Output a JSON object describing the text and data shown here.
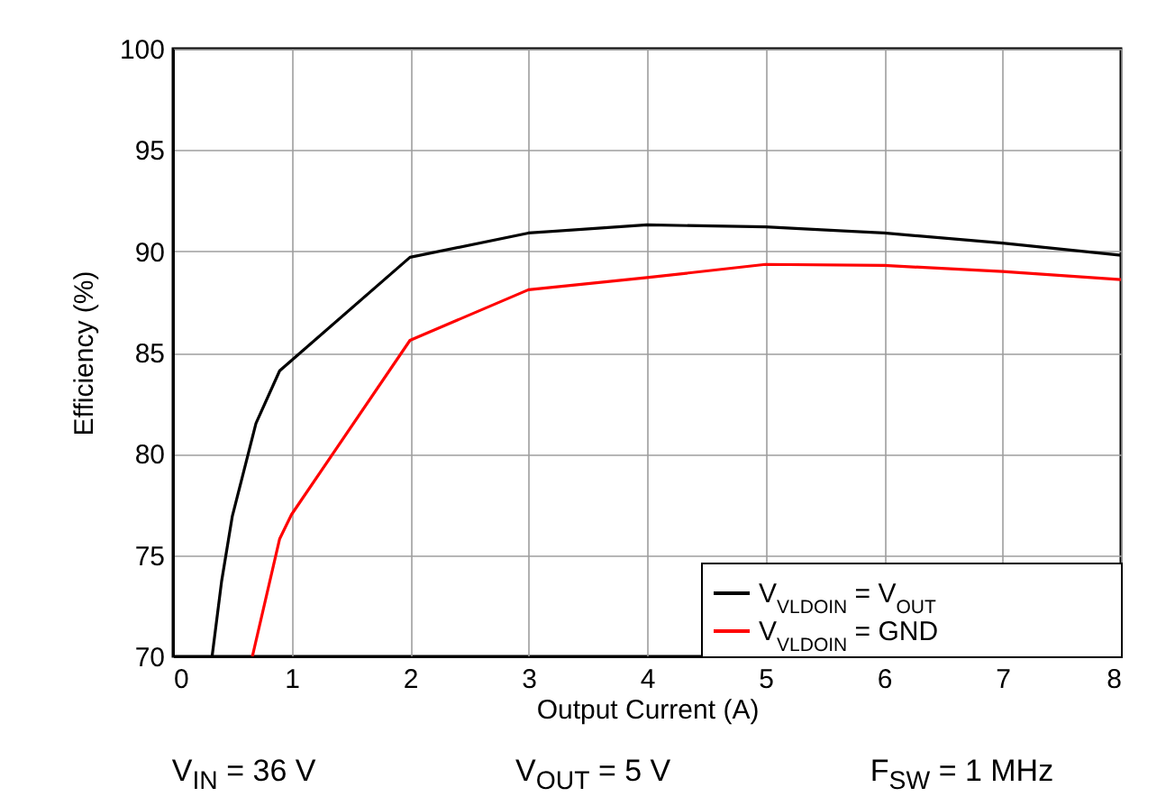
{
  "chart_data": {
    "type": "line",
    "xlabel": "Output Current (A)",
    "ylabel": "Efficiency (%)",
    "xlim": [
      0,
      8
    ],
    "ylim": [
      70,
      100
    ],
    "xticks": [
      0,
      1,
      2,
      3,
      4,
      5,
      6,
      7,
      8
    ],
    "yticks": [
      70,
      75,
      80,
      85,
      90,
      95,
      100
    ],
    "grid": true,
    "legend": "bottom right",
    "marker": "none",
    "line_style": "solid",
    "series": [
      {
        "name": "V$_{VLDOIN}$ = V$_{OUT}$",
        "color": "#000000",
        "x": [
          0.33,
          0.41,
          0.5,
          0.7,
          0.9,
          2,
          3,
          4,
          5,
          6,
          7,
          8
        ],
        "values": [
          70,
          73.7,
          76.9,
          81.5,
          84.1,
          89.7,
          90.9,
          91.3,
          91.2,
          90.9,
          90.4,
          89.8
        ]
      },
      {
        "name": "V$_{VLDOIN}$ = GND",
        "color": "#ff0000",
        "x": [
          0.67,
          0.9,
          1,
          2,
          3,
          4,
          5,
          6,
          7,
          8
        ],
        "values": [
          70,
          75.8,
          77,
          85.6,
          88.1,
          88.7,
          89.35,
          89.3,
          89.0,
          88.6
        ]
      }
    ],
    "annotations": [
      "V$_{IN}$ = 36 V",
      "V$_{OUT}$ = 5 V",
      "F$_{SW}$ = 1 MHz"
    ]
  }
}
